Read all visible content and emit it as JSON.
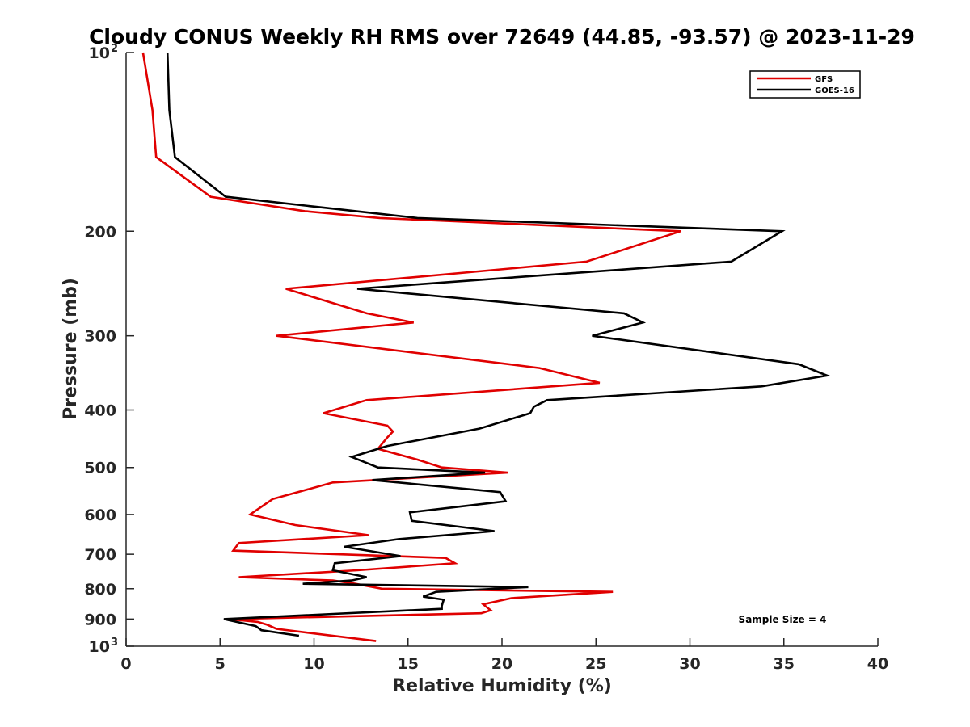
{
  "chart_data": {
    "type": "line",
    "title": "Cloudy CONUS Weekly RH RMS over 72649 (44.85, -93.57) @ 2023-11-29",
    "xlabel": "Relative Humidity (%)",
    "ylabel": "Pressure (mb)",
    "xlim": [
      0,
      40
    ],
    "ylim": [
      100,
      1000
    ],
    "y_scale": "log",
    "y_reversed": true,
    "grid": false,
    "legend_position": "top-right",
    "x_ticks": [
      0,
      5,
      10,
      15,
      20,
      25,
      30,
      35,
      40
    ],
    "y_ticks": [
      {
        "value": 100,
        "label": "10",
        "exp": "2"
      },
      {
        "value": 200,
        "label": "200"
      },
      {
        "value": 300,
        "label": "300"
      },
      {
        "value": 400,
        "label": "400"
      },
      {
        "value": 500,
        "label": "500"
      },
      {
        "value": 600,
        "label": "600"
      },
      {
        "value": 700,
        "label": "700"
      },
      {
        "value": 800,
        "label": "800"
      },
      {
        "value": 900,
        "label": "900"
      },
      {
        "value": 1000,
        "label": "10",
        "exp": "3"
      }
    ],
    "annotation": "Sample Size = 4",
    "series": [
      {
        "name": "GFS",
        "color": "#e00000",
        "points": [
          [
            0.9,
            100
          ],
          [
            1.4,
            125
          ],
          [
            1.6,
            150
          ],
          [
            4.5,
            175
          ],
          [
            9.5,
            185
          ],
          [
            13.5,
            190
          ],
          [
            29.5,
            200
          ],
          [
            24.5,
            225
          ],
          [
            8.5,
            250
          ],
          [
            12.8,
            275
          ],
          [
            15.3,
            285
          ],
          [
            8.0,
            300
          ],
          [
            22.0,
            340
          ],
          [
            25.2,
            360
          ],
          [
            12.8,
            385
          ],
          [
            10.5,
            405
          ],
          [
            13.9,
            425
          ],
          [
            14.2,
            435
          ],
          [
            13.9,
            445
          ],
          [
            13.4,
            465
          ],
          [
            15.5,
            485
          ],
          [
            16.8,
            500
          ],
          [
            20.3,
            510
          ],
          [
            11.0,
            530
          ],
          [
            7.8,
            565
          ],
          [
            6.6,
            600
          ],
          [
            9.0,
            625
          ],
          [
            12.9,
            650
          ],
          [
            6.0,
            670
          ],
          [
            5.7,
            690
          ],
          [
            17.0,
            710
          ],
          [
            17.5,
            725
          ],
          [
            12.3,
            745
          ],
          [
            6.0,
            765
          ],
          [
            11.0,
            775
          ],
          [
            12.2,
            785
          ],
          [
            13.6,
            800
          ],
          [
            25.9,
            810
          ],
          [
            20.5,
            830
          ],
          [
            19.0,
            850
          ],
          [
            19.4,
            870
          ],
          [
            18.9,
            880
          ],
          [
            5.5,
            900
          ],
          [
            7.0,
            910
          ],
          [
            7.5,
            920
          ],
          [
            8.0,
            935
          ],
          [
            13.3,
            980
          ]
        ]
      },
      {
        "name": "GOES-16",
        "color": "#000000",
        "points": [
          [
            2.2,
            100
          ],
          [
            2.3,
            125
          ],
          [
            2.6,
            150
          ],
          [
            5.3,
            175
          ],
          [
            15.5,
            190
          ],
          [
            34.9,
            200
          ],
          [
            32.2,
            225
          ],
          [
            12.3,
            250
          ],
          [
            26.5,
            275
          ],
          [
            27.5,
            285
          ],
          [
            24.8,
            300
          ],
          [
            35.8,
            335
          ],
          [
            37.3,
            350
          ],
          [
            33.8,
            365
          ],
          [
            22.4,
            385
          ],
          [
            21.7,
            395
          ],
          [
            21.5,
            405
          ],
          [
            18.8,
            430
          ],
          [
            13.9,
            460
          ],
          [
            12.0,
            480
          ],
          [
            13.4,
            500
          ],
          [
            19.1,
            510
          ],
          [
            13.1,
            525
          ],
          [
            19.9,
            550
          ],
          [
            20.2,
            570
          ],
          [
            15.1,
            595
          ],
          [
            15.2,
            615
          ],
          [
            19.6,
            640
          ],
          [
            14.5,
            660
          ],
          [
            11.6,
            680
          ],
          [
            14.6,
            705
          ],
          [
            11.1,
            725
          ],
          [
            11.0,
            745
          ],
          [
            12.8,
            765
          ],
          [
            12.0,
            775
          ],
          [
            9.4,
            785
          ],
          [
            21.4,
            795
          ],
          [
            16.5,
            810
          ],
          [
            15.8,
            825
          ],
          [
            16.9,
            835
          ],
          [
            16.8,
            855
          ],
          [
            16.8,
            865
          ],
          [
            5.2,
            900
          ],
          [
            6.9,
            925
          ],
          [
            7.2,
            940
          ],
          [
            9.2,
            960
          ]
        ]
      }
    ]
  }
}
